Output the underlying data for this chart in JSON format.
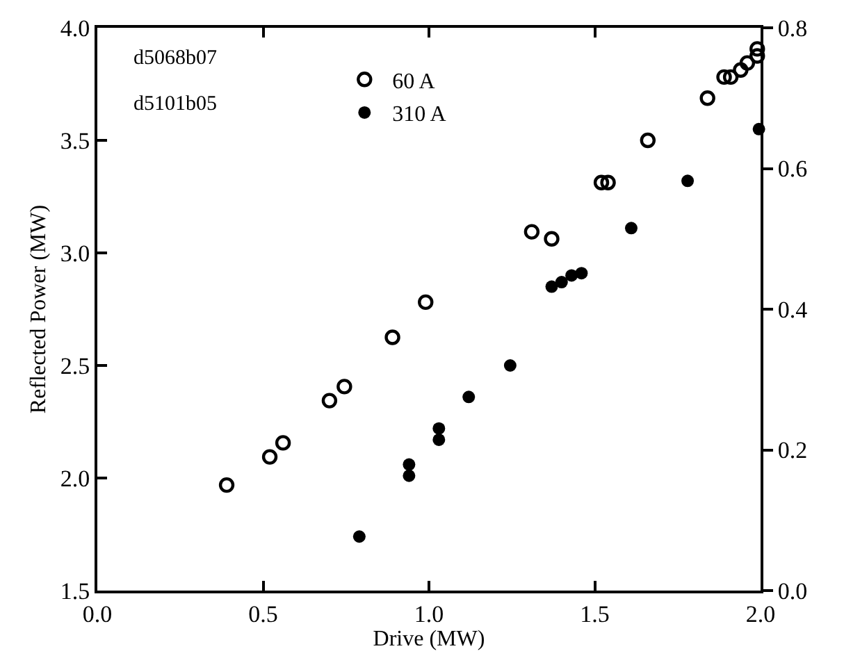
{
  "chart_data": {
    "type": "scatter",
    "xlabel": "Drive (MW)",
    "ylabel": "Reflected Power (MW)",
    "annotations": [
      "d5068b07",
      "d5101b05"
    ],
    "xlim": [
      0,
      2
    ],
    "xticks": [
      {
        "value": 0,
        "label": "0.0"
      },
      0.5,
      {
        "value": 1,
        "label": "1.0"
      },
      1.5,
      {
        "value": 2,
        "label": "2.0"
      }
    ],
    "ylim": [
      1.5,
      4
    ],
    "yticks": [
      1.5,
      {
        "value": 2,
        "label": "2.0"
      },
      2.5,
      {
        "value": 3,
        "label": "3.0"
      },
      3.5,
      {
        "value": 4,
        "label": "4.0"
      }
    ],
    "y2lim": [
      0,
      0.8
    ],
    "y2ticks": [
      {
        "value": 0,
        "label": "0.0"
      },
      0.2,
      0.4,
      0.6,
      0.8
    ],
    "legend": "top",
    "series": [
      {
        "name": "60 A",
        "color": "#000000",
        "marker": "circle-open",
        "axis": "y2",
        "x": [
          0.39,
          0.52,
          0.56,
          0.7,
          0.745,
          0.89,
          0.99,
          1.31,
          1.37,
          1.52,
          1.54,
          1.66,
          1.84,
          1.89,
          1.91,
          1.94,
          1.96,
          1.99,
          1.99
        ],
        "values": [
          0.15,
          0.19,
          0.21,
          0.27,
          0.29,
          0.36,
          0.41,
          0.51,
          0.5,
          0.58,
          0.58,
          0.64,
          0.7,
          0.73,
          0.73,
          0.74,
          0.75,
          0.76,
          0.77
        ]
      },
      {
        "name": "310 A",
        "color": "#000000",
        "marker": "circle",
        "x": [
          0.79,
          0.94,
          0.94,
          1.03,
          1.03,
          1.12,
          1.245,
          1.37,
          1.4,
          1.43,
          1.46,
          1.61,
          1.78,
          1.995
        ],
        "values": [
          1.74,
          2.06,
          2.01,
          2.22,
          2.17,
          2.36,
          2.5,
          2.85,
          2.87,
          2.9,
          2.91,
          3.11,
          3.32,
          3.55
        ]
      }
    ]
  }
}
